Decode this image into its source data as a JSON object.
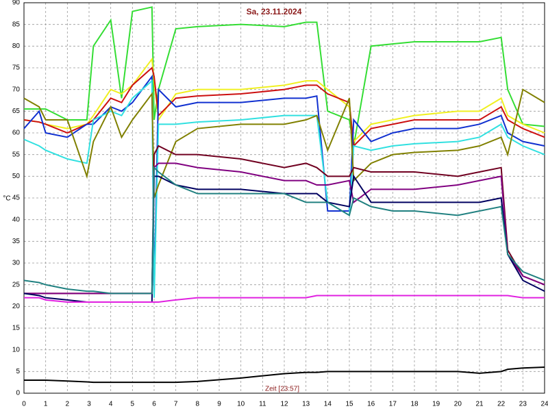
{
  "chart_data": {
    "type": "line",
    "title": "Sa, 23.11.2024",
    "xlabel": "Zeit [23:57]",
    "ylabel": "°C",
    "x": [
      0,
      0.7,
      1,
      2,
      2.9,
      3.2,
      4,
      4.5,
      5,
      5.9,
      6,
      6.2,
      7,
      8,
      10,
      12,
      13,
      13.5,
      14,
      15,
      15.2,
      16,
      17,
      18,
      20,
      21,
      22,
      22.3,
      23,
      24
    ],
    "xlim": [
      0,
      24
    ],
    "xticks": [
      0,
      1,
      2,
      3,
      4,
      5,
      6,
      7,
      8,
      9,
      10,
      11,
      12,
      13,
      14,
      15,
      16,
      17,
      18,
      19,
      20,
      21,
      22,
      23,
      24
    ],
    "ylim": [
      0,
      90
    ],
    "yticks": [
      0,
      5,
      10,
      15,
      20,
      25,
      30,
      35,
      40,
      45,
      50,
      55,
      60,
      65,
      70,
      75,
      80,
      85,
      90
    ],
    "grid": true,
    "series": [
      {
        "color": "#33dd33",
        "values": [
          65.5,
          65.5,
          65.5,
          63,
          63,
          80,
          86,
          68,
          88,
          89,
          63,
          70,
          84,
          84.5,
          85,
          84.5,
          85.5,
          85.5,
          65,
          63,
          57,
          80,
          80.5,
          81,
          81,
          81,
          82,
          70,
          62,
          61.5
        ]
      },
      {
        "color": "#f0f020",
        "values": [
          63,
          62.5,
          62,
          61,
          62,
          64,
          70,
          69,
          71,
          77,
          72,
          63,
          69,
          70,
          70,
          71,
          72,
          72,
          70,
          66,
          58,
          62,
          63,
          64,
          65,
          65,
          68,
          64,
          62,
          60
        ]
      },
      {
        "color": "#cc1010",
        "values": [
          63,
          62.5,
          62,
          60,
          62,
          63,
          68,
          67,
          71,
          75,
          73,
          64,
          68,
          68.5,
          69,
          70,
          71,
          71,
          69,
          67,
          57,
          61,
          62,
          63,
          63,
          63,
          66,
          63,
          61,
          59
        ]
      },
      {
        "color": "#1030d0",
        "values": [
          61,
          65,
          60,
          59,
          62,
          62,
          66,
          65,
          67,
          73,
          23,
          70,
          66,
          67,
          67,
          68,
          68,
          68.5,
          42,
          42,
          63,
          58,
          60,
          61,
          61,
          62,
          64,
          60,
          58,
          57
        ]
      },
      {
        "color": "#30e0e0",
        "values": [
          58.5,
          57,
          56,
          54,
          53,
          63,
          65,
          64,
          68,
          72,
          22,
          62,
          62,
          62.5,
          63,
          64,
          64,
          64,
          44,
          41,
          57,
          56,
          57,
          57.5,
          58,
          59,
          62,
          59,
          57,
          55
        ]
      },
      {
        "color": "#808000",
        "values": [
          68,
          66,
          63,
          63,
          50,
          58,
          66,
          59,
          63,
          69,
          45,
          48,
          58,
          61,
          62,
          62,
          63,
          64,
          56,
          68,
          49,
          53,
          55,
          55.5,
          56,
          57,
          59,
          55,
          70,
          67
        ]
      },
      {
        "color": "#700020",
        "values": [
          23,
          23,
          23,
          23,
          23,
          23,
          23,
          23,
          23,
          23,
          55,
          57,
          55,
          55,
          54,
          52,
          53,
          52,
          50,
          50,
          52,
          51,
          51,
          51,
          50,
          51,
          52,
          33,
          27,
          25
        ]
      },
      {
        "color": "#800080",
        "values": [
          23,
          23,
          23,
          23,
          23,
          23,
          23,
          23,
          23,
          23,
          52,
          53,
          53,
          52,
          51,
          49,
          49,
          48,
          48,
          49,
          44,
          47,
          47,
          47,
          48,
          49,
          50,
          32,
          27,
          25
        ]
      },
      {
        "color": "#000060",
        "values": [
          23,
          22.5,
          22,
          21.5,
          21,
          21,
          21,
          21,
          21,
          21,
          50,
          50,
          48,
          47,
          47,
          46,
          46,
          46,
          44,
          43,
          50,
          44,
          44,
          44,
          44,
          44,
          45,
          32,
          26,
          23.5
        ]
      },
      {
        "color": "#208080",
        "values": [
          26,
          25.5,
          25,
          24,
          23.5,
          23.5,
          23,
          23,
          23,
          23,
          52,
          51,
          48,
          46,
          46,
          46,
          44,
          44,
          44,
          41,
          45,
          43,
          42,
          42,
          41,
          42,
          43,
          32,
          28,
          26
        ]
      },
      {
        "color": "#e020e0",
        "values": [
          22,
          22,
          21.5,
          21,
          21,
          21,
          21,
          21,
          21,
          21,
          21,
          21,
          21.5,
          22,
          22,
          22,
          22,
          22.5,
          22.5,
          22.5,
          22.5,
          22.5,
          22.5,
          22.5,
          22.5,
          22.5,
          22.5,
          22.5,
          22,
          22
        ]
      },
      {
        "color": "#000000",
        "values": [
          3,
          3,
          3,
          2.8,
          2.6,
          2.5,
          2.5,
          2.5,
          2.5,
          2.5,
          2.5,
          2.5,
          2.5,
          2.7,
          3.5,
          4.5,
          4.8,
          4.8,
          5,
          5,
          5,
          5,
          5,
          5,
          5,
          4.6,
          5,
          5.5,
          5.8,
          6
        ]
      }
    ]
  }
}
